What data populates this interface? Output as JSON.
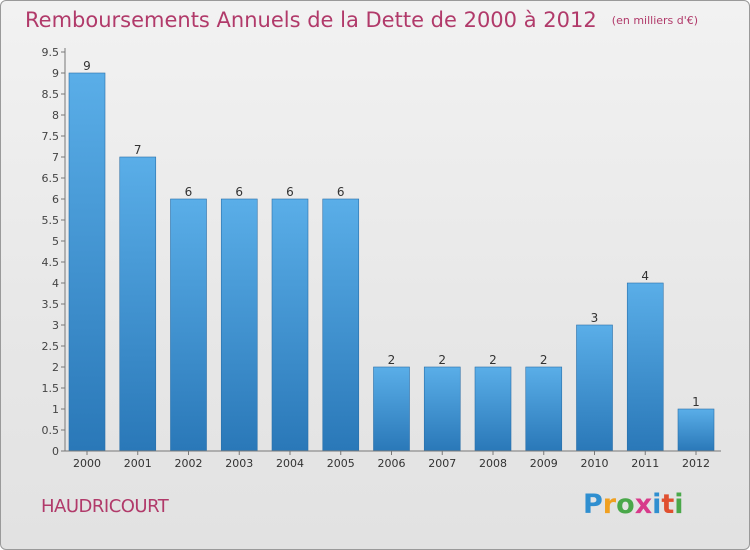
{
  "header": {
    "title": "Remboursements Annuels de la Dette de 2000 à 2012",
    "subtitle": "(en milliers d'€)"
  },
  "place_name": "HAUDRICOURT",
  "logo": {
    "text": "Proxiti",
    "letters": [
      "P",
      "r",
      "o",
      "x",
      "i",
      "t",
      "i"
    ]
  },
  "colors": {
    "title": "#b13a6a",
    "bar_light": "#5aaee8",
    "bar_dark": "#2a78b8",
    "background": "#e9e9e9"
  },
  "chart_data": {
    "type": "bar",
    "title": "Remboursements Annuels de la Dette de 2000 à 2012",
    "subtitle": "(en milliers d'€)",
    "xlabel": "",
    "ylabel": "",
    "categories": [
      "2000",
      "2001",
      "2002",
      "2003",
      "2004",
      "2005",
      "2006",
      "2007",
      "2008",
      "2009",
      "2010",
      "2011",
      "2012"
    ],
    "values": [
      9,
      7,
      6,
      6,
      6,
      6,
      2,
      2,
      2,
      2,
      3,
      4,
      1
    ],
    "data_labels": [
      "9",
      "7",
      "6",
      "6",
      "6",
      "6",
      "2",
      "2",
      "2",
      "2",
      "3",
      "4",
      "1"
    ],
    "ylim": [
      0,
      9.5
    ],
    "y_ticks": [
      "0",
      "0.5",
      "1",
      "1.5",
      "2",
      "2.5",
      "3",
      "3.5",
      "4",
      "4.5",
      "5",
      "5.5",
      "6",
      "6.5",
      "7",
      "7.5",
      "8",
      "8.5",
      "9",
      "9.5"
    ],
    "grid": false,
    "legend": "none"
  }
}
